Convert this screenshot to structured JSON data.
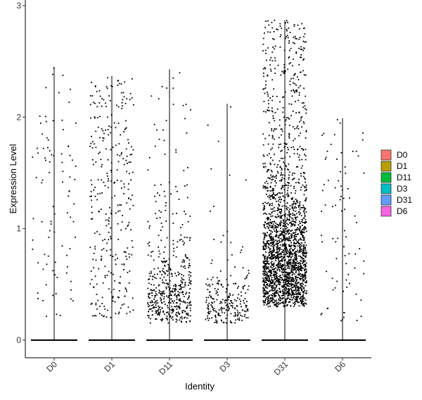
{
  "chart_data": {
    "type": "violin",
    "xlabel": "Identity",
    "ylabel": "Expression Level",
    "ylim": [
      -0.15,
      3.02
    ],
    "yticks": [
      0,
      1,
      2,
      3
    ],
    "categories": [
      "D0",
      "D1",
      "D11",
      "D3",
      "D31",
      "D6"
    ],
    "grid": false,
    "points": "jittered",
    "legend_position": "right",
    "series": [
      {
        "name": "D0",
        "color": "#F8766D",
        "max": 2.45,
        "n_nonzero": 90,
        "nonzero_range": [
          0.2,
          2.45
        ],
        "median_nonzero": 0.8
      },
      {
        "name": "D1",
        "color": "#B79F00",
        "max": 2.37,
        "n_nonzero": 320,
        "nonzero_range": [
          0.2,
          2.37
        ],
        "median_nonzero": 0.8
      },
      {
        "name": "D11",
        "color": "#00BA38",
        "max": 2.43,
        "n_nonzero": 500,
        "nonzero_range": [
          0.15,
          2.43
        ],
        "median_nonzero": 0.4
      },
      {
        "name": "D3",
        "color": "#00BFC4",
        "max": 2.12,
        "n_nonzero": 230,
        "nonzero_range": [
          0.15,
          2.12
        ],
        "median_nonzero": 0.3
      },
      {
        "name": "D31",
        "color": "#619CFF",
        "max": 2.87,
        "n_nonzero": 2200,
        "nonzero_range": [
          0.3,
          2.87
        ],
        "median_nonzero": 0.7
      },
      {
        "name": "D6",
        "color": "#F564E3",
        "max": 1.99,
        "n_nonzero": 80,
        "nonzero_range": [
          0.15,
          1.99
        ],
        "median_nonzero": 0.4
      }
    ]
  }
}
